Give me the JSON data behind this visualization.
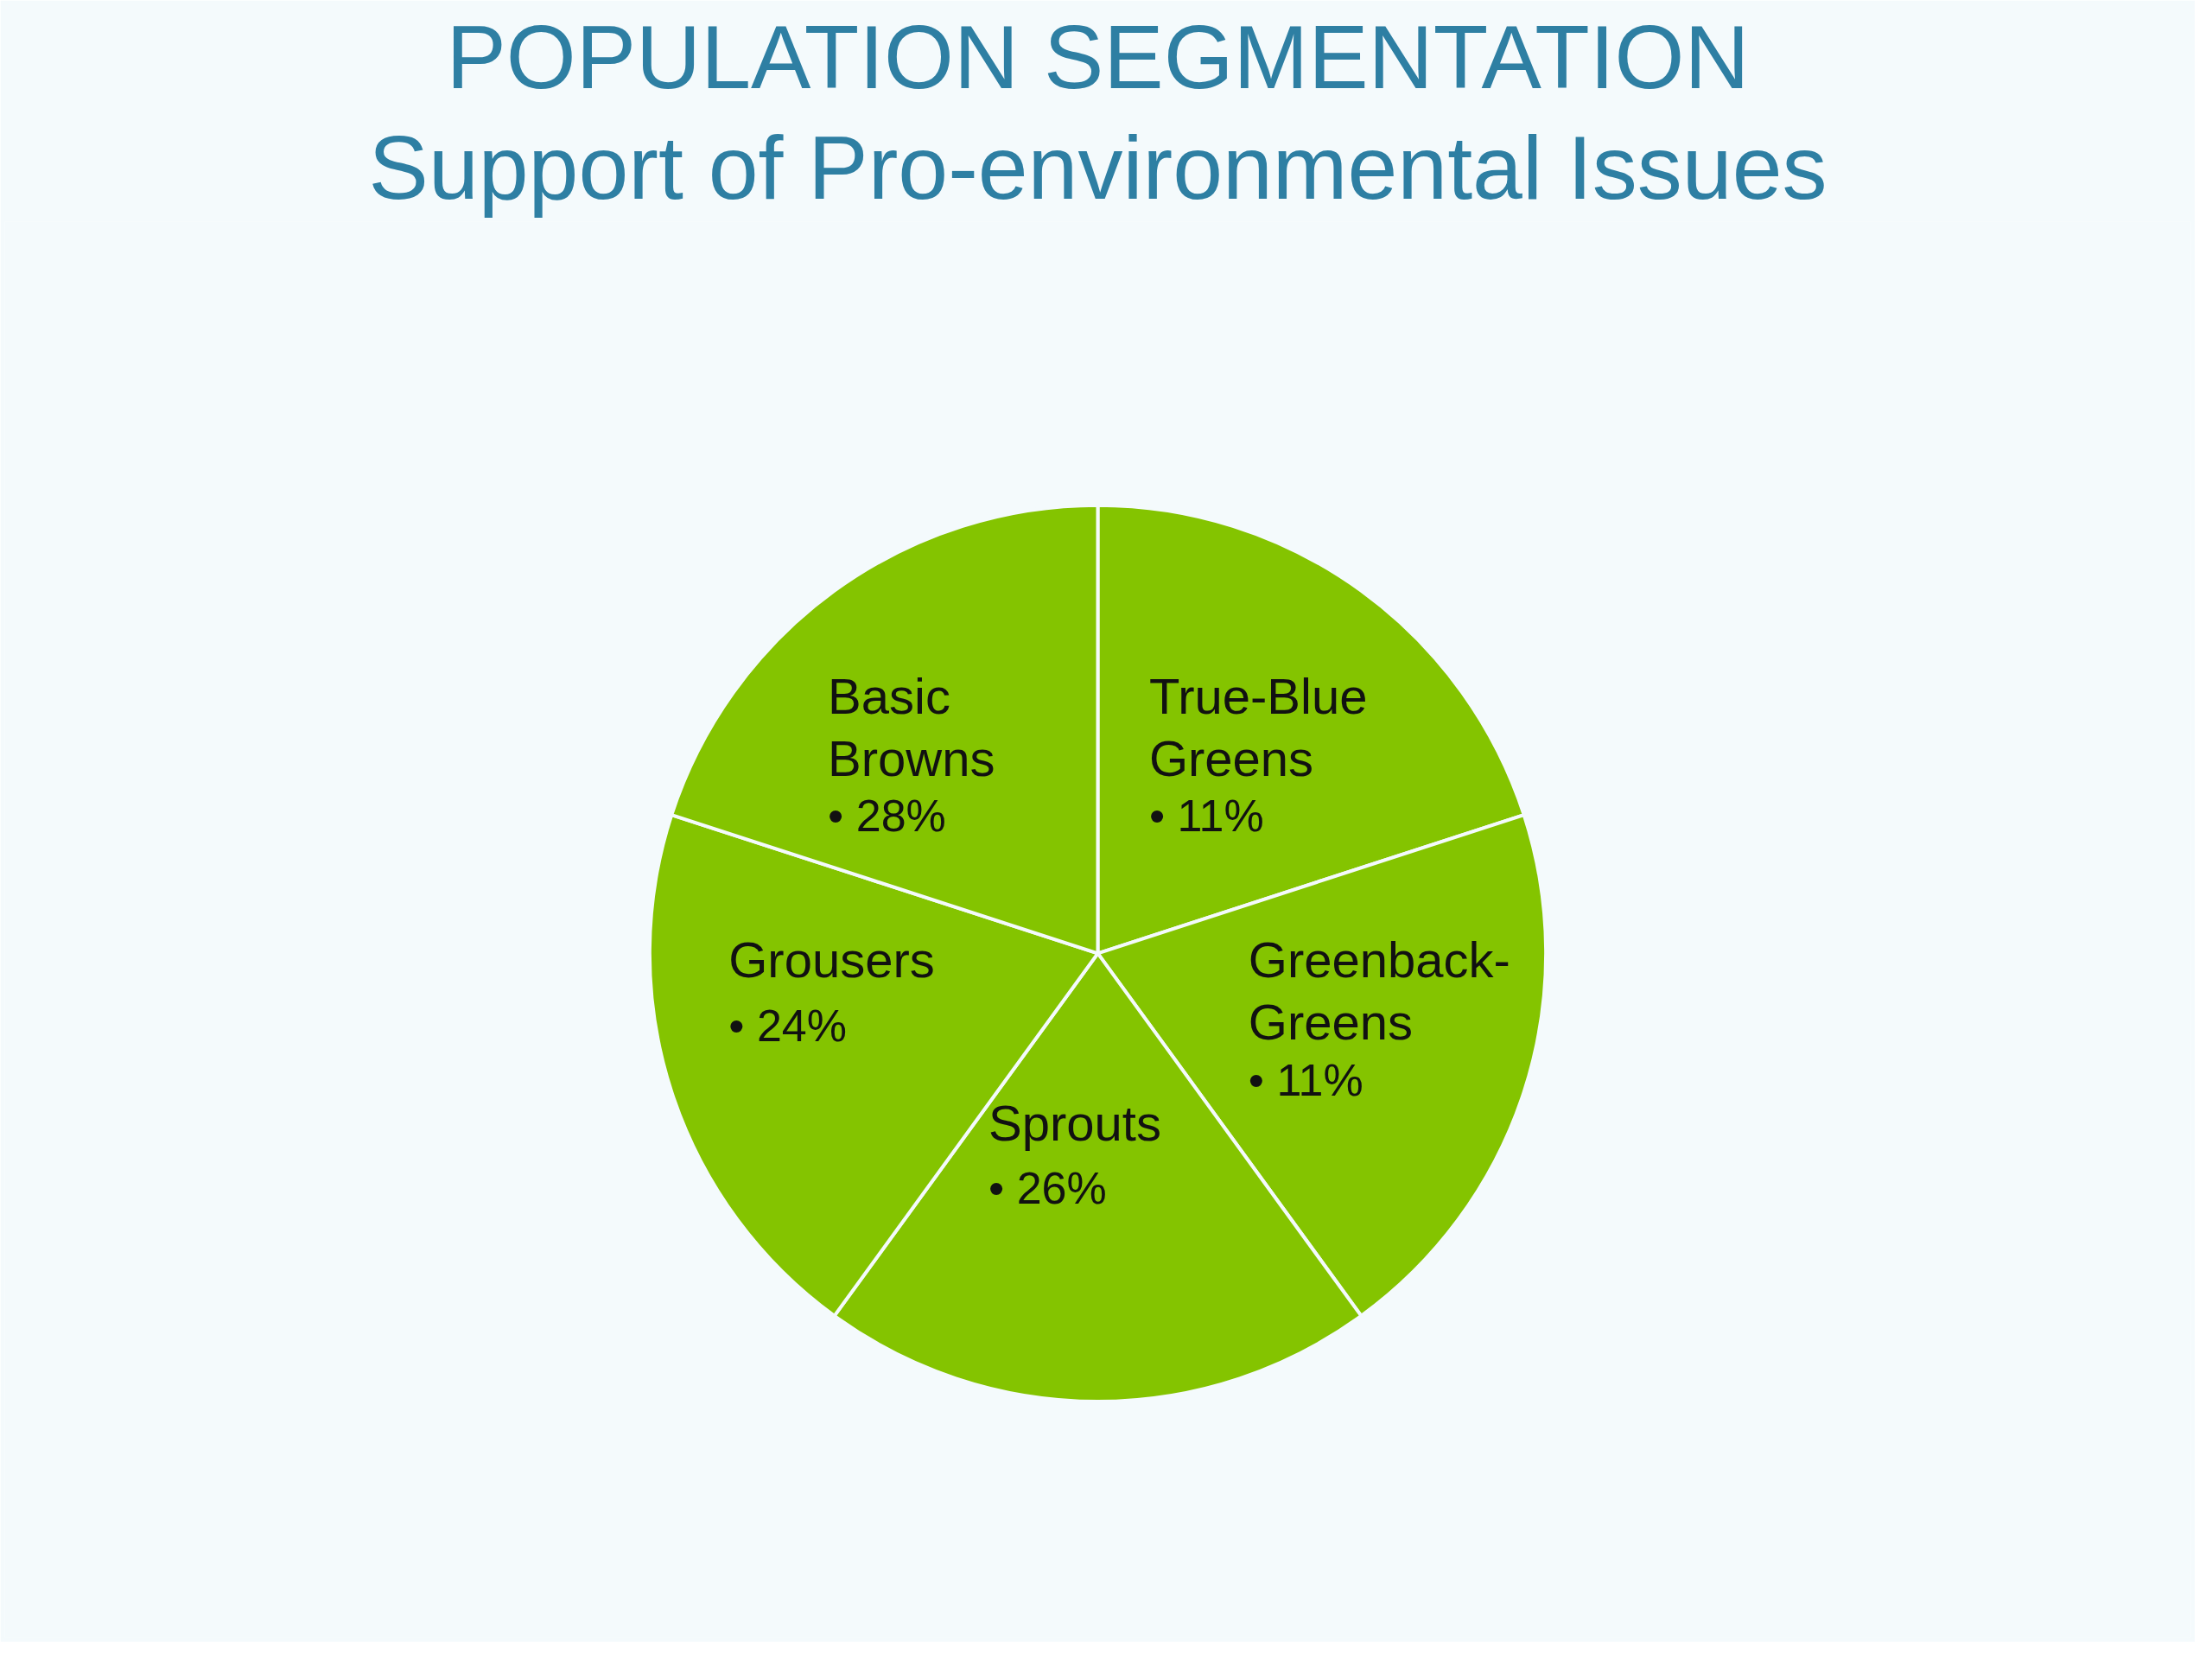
{
  "chart_data": {
    "type": "other",
    "title": "POPULATION SEGMENTATION",
    "subtitle": "Support of Pro-environmental Issues",
    "categories": [
      "True-Blue\nGreens",
      "Greenback-\nGreens",
      "Sprouts",
      "Grousers",
      "Basic\nBrowns"
    ],
    "values": [
      11,
      11,
      26,
      24,
      28
    ],
    "value_labels": [
      "• 11%",
      "• 11%",
      "• 26%",
      "• 24%",
      "• 28%"
    ],
    "color": "#84c400"
  }
}
